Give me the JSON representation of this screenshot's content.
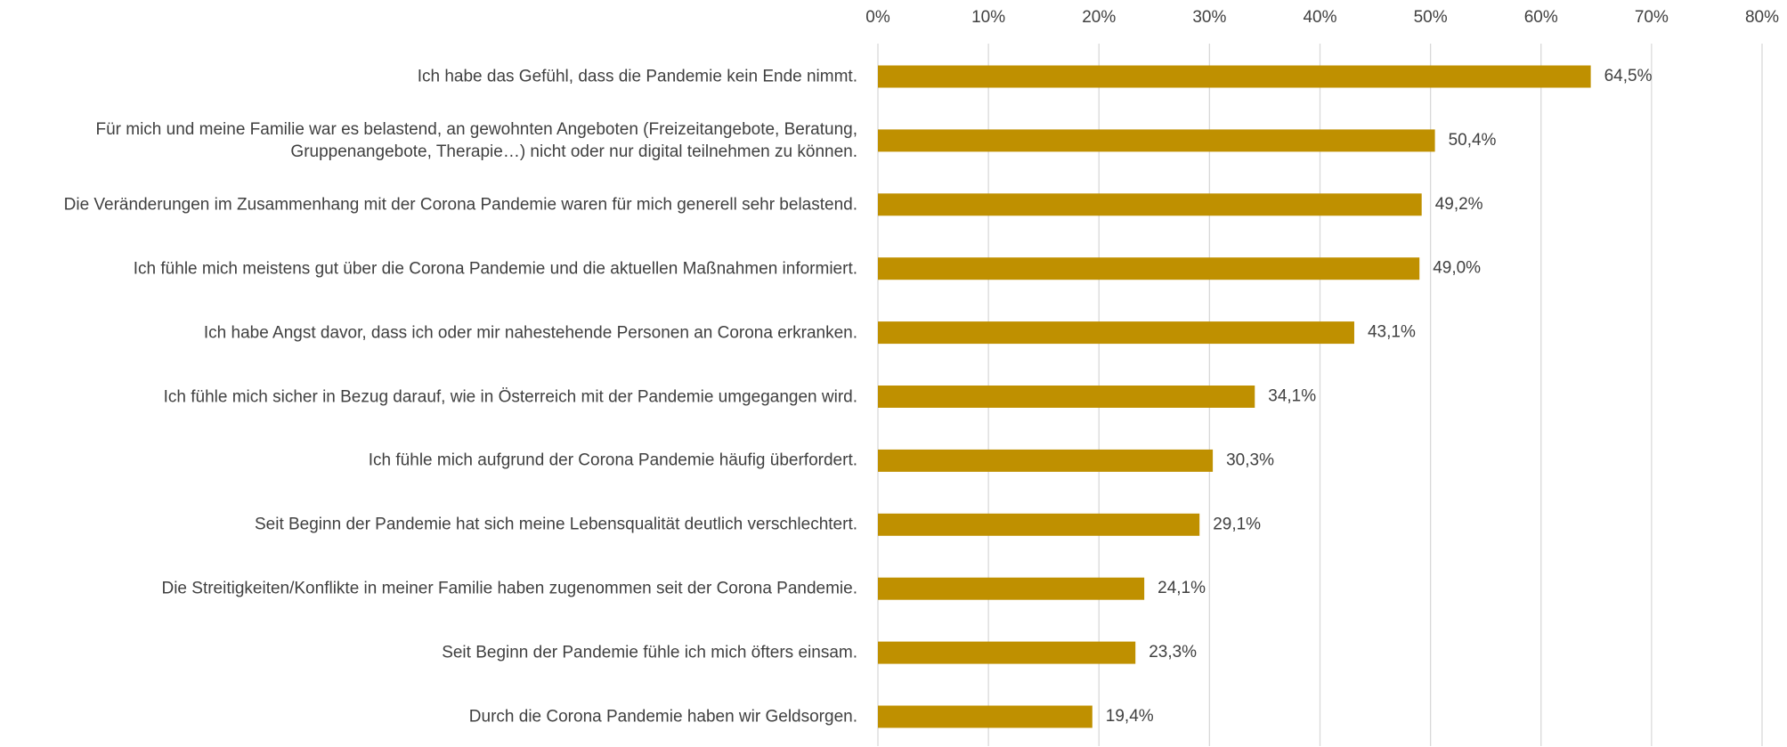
{
  "chart_data": {
    "type": "barh",
    "categories": [
      "Ich habe das Gefühl, dass die Pandemie kein Ende nimmt.",
      "Für mich und meine Familie war es belastend, an gewohnten Angeboten (Freizeitangebote, Beratung, Gruppenangebote, Therapie…) nicht oder nur digital teilnehmen zu können.",
      "Die Veränderungen im Zusammenhang mit der Corona Pandemie waren für mich generell sehr belastend.",
      "Ich fühle mich meistens gut über die Corona Pandemie und die aktuellen Maßnahmen informiert.",
      "Ich habe Angst davor, dass ich oder mir nahestehende Personen an Corona erkranken.",
      "Ich fühle mich sicher in Bezug darauf, wie in Österreich mit der Pandemie umgegangen wird.",
      "Ich fühle mich aufgrund der Corona Pandemie häufig überfordert.",
      "Seit Beginn der Pandemie hat sich meine Lebensqualität deutlich verschlechtert.",
      "Die Streitigkeiten/Konflikte in meiner Familie haben zugenommen seit der Corona Pandemie.",
      "Seit Beginn der Pandemie fühle ich mich öfters einsam.",
      "Durch die Corona Pandemie haben wir Geldsorgen."
    ],
    "values": [
      64.5,
      50.4,
      49.2,
      49.0,
      43.1,
      34.1,
      30.3,
      29.1,
      24.1,
      23.3,
      19.4
    ],
    "value_labels": [
      "64,5%",
      "50,4%",
      "49,2%",
      "49,0%",
      "43,1%",
      "34,1%",
      "30,3%",
      "29,1%",
      "24,1%",
      "23,3%",
      "19,4%"
    ],
    "color": "#bf9000",
    "xlim": [
      0,
      80
    ],
    "xticks": [
      {
        "value": 0,
        "label": "0%"
      },
      {
        "value": 10,
        "label": "10%"
      },
      {
        "value": 20,
        "label": "20%"
      },
      {
        "value": 30,
        "label": "30%"
      },
      {
        "value": 40,
        "label": "40%"
      },
      {
        "value": 50,
        "label": "50%"
      },
      {
        "value": 60,
        "label": "60%"
      },
      {
        "value": 70,
        "label": "70%"
      },
      {
        "value": 80,
        "label": "80%"
      }
    ],
    "grid": true
  }
}
